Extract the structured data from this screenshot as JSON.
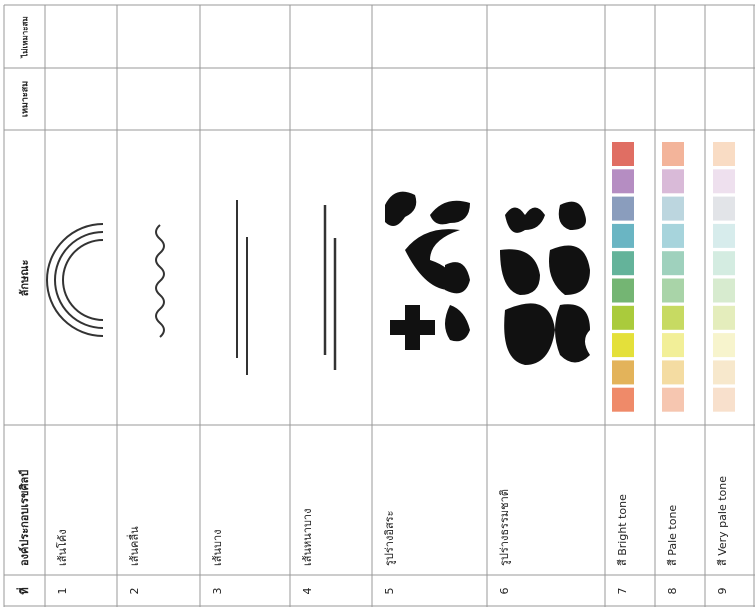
{
  "header": {
    "number": "ที่",
    "element": "องค์ประกอบเรขศิลป์",
    "feature": "ลักษณะ",
    "suitable": "เหมาะสม",
    "unsuitable": "ไม่เหมาะสม"
  },
  "rows": [
    {
      "number": "1",
      "name": "เส้นโค้ง"
    },
    {
      "number": "2",
      "name": "เส้นคลื่น"
    },
    {
      "number": "3",
      "name": "เส้นบาง"
    },
    {
      "number": "4",
      "name": "เส้นหนาบาง"
    },
    {
      "number": "5",
      "name": "รูปร่างอิสระ"
    },
    {
      "number": "6",
      "name": "รูปร่างธรรมชาติ"
    },
    {
      "number": "7",
      "name": "สี Bright tone"
    },
    {
      "number": "8",
      "name": "สี Pale tone"
    },
    {
      "number": "9",
      "name": "สี Very pale tone"
    }
  ]
}
